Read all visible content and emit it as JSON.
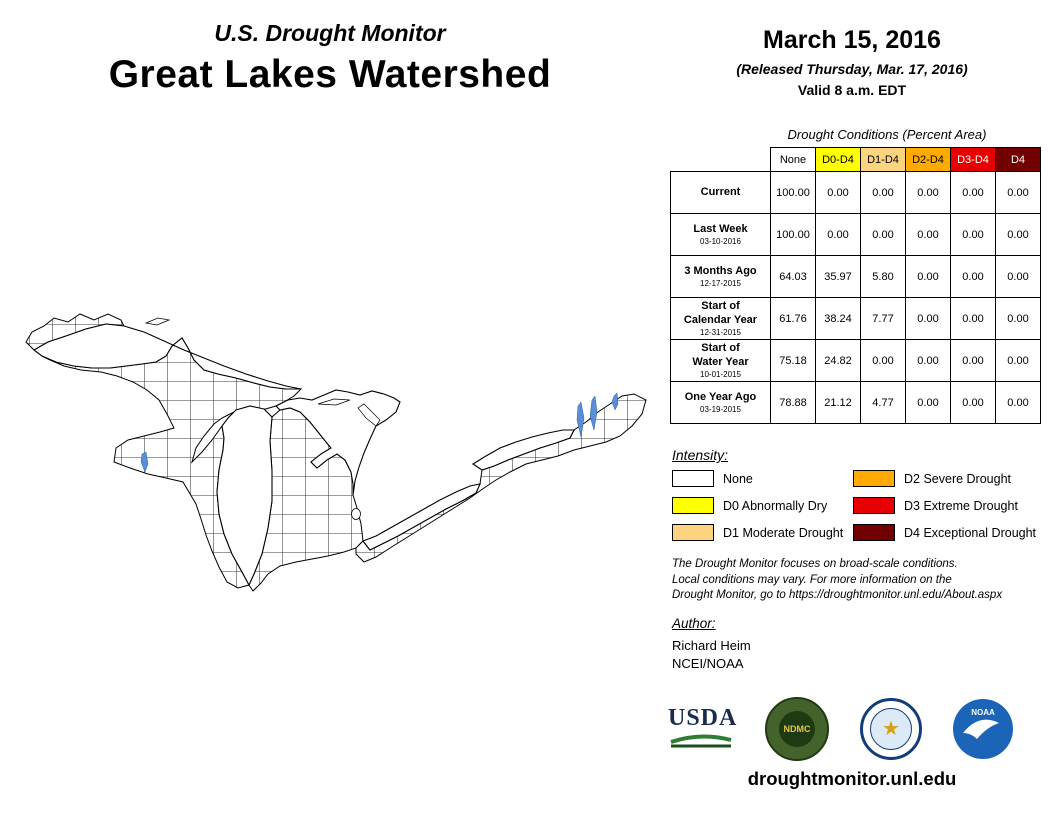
{
  "header": {
    "supertitle": "U.S. Drought Monitor",
    "title": "Great Lakes Watershed"
  },
  "date_block": {
    "date": "March 15, 2016",
    "released": "(Released Thursday, Mar. 17, 2016)",
    "valid": "Valid 8 a.m. EDT"
  },
  "table": {
    "title": "Drought Conditions (Percent Area)",
    "columns": [
      {
        "label": "None",
        "bg": "#ffffff",
        "text": "#000000"
      },
      {
        "label": "D0-D4",
        "bg": "#ffff00",
        "text": "#000000"
      },
      {
        "label": "D1-D4",
        "bg": "#fcd37f",
        "text": "#000000"
      },
      {
        "label": "D2-D4",
        "bg": "#ffaa00",
        "text": "#000000"
      },
      {
        "label": "D3-D4",
        "bg": "#e60000",
        "text": "#ffffff"
      },
      {
        "label": "D4",
        "bg": "#730000",
        "text": "#ffffff"
      }
    ],
    "rows": [
      {
        "label": "Current",
        "date": "",
        "values": [
          "100.00",
          "0.00",
          "0.00",
          "0.00",
          "0.00",
          "0.00"
        ]
      },
      {
        "label": "Last Week",
        "date": "03-10-2016",
        "values": [
          "100.00",
          "0.00",
          "0.00",
          "0.00",
          "0.00",
          "0.00"
        ]
      },
      {
        "label": "3 Months Ago",
        "date": "12-17-2015",
        "values": [
          "64.03",
          "35.97",
          "5.80",
          "0.00",
          "0.00",
          "0.00"
        ]
      },
      {
        "label": "Start of\nCalendar Year",
        "date": "12-31-2015",
        "values": [
          "61.76",
          "38.24",
          "7.77",
          "0.00",
          "0.00",
          "0.00"
        ]
      },
      {
        "label": "Start of\nWater Year",
        "date": "10-01-2015",
        "values": [
          "75.18",
          "24.82",
          "0.00",
          "0.00",
          "0.00",
          "0.00"
        ]
      },
      {
        "label": "One Year Ago",
        "date": "03-19-2015",
        "values": [
          "78.88",
          "21.12",
          "4.77",
          "0.00",
          "0.00",
          "0.00"
        ]
      }
    ]
  },
  "legend": {
    "title": "Intensity:",
    "items": [
      {
        "label": "None",
        "color": "#ffffff"
      },
      {
        "label": "D0 Abnormally Dry",
        "color": "#ffff00"
      },
      {
        "label": "D1 Moderate Drought",
        "color": "#fcd37f"
      },
      {
        "label": "D2 Severe Drought",
        "color": "#ffaa00"
      },
      {
        "label": "D3 Extreme Drought",
        "color": "#e60000"
      },
      {
        "label": "D4 Exceptional Drought",
        "color": "#730000"
      }
    ]
  },
  "disclaimer_lines": [
    "The Drought Monitor focuses on broad-scale conditions.",
    "Local conditions may vary. For more information on the",
    "Drought Monitor, go to https://droughtmonitor.unl.edu/About.aspx"
  ],
  "author": {
    "heading": "Author:",
    "name": "Richard Heim",
    "org": "NCEI/NOAA"
  },
  "logos": {
    "usda_label": "USDA",
    "ndmc_label": "NDMC",
    "noaa_label": "NOAA"
  },
  "footer": {
    "url": "droughtmonitor.unl.edu"
  },
  "map": {
    "region": "Great Lakes Watershed",
    "water_color": "#5a8fd8",
    "outline_color": "#000000"
  }
}
